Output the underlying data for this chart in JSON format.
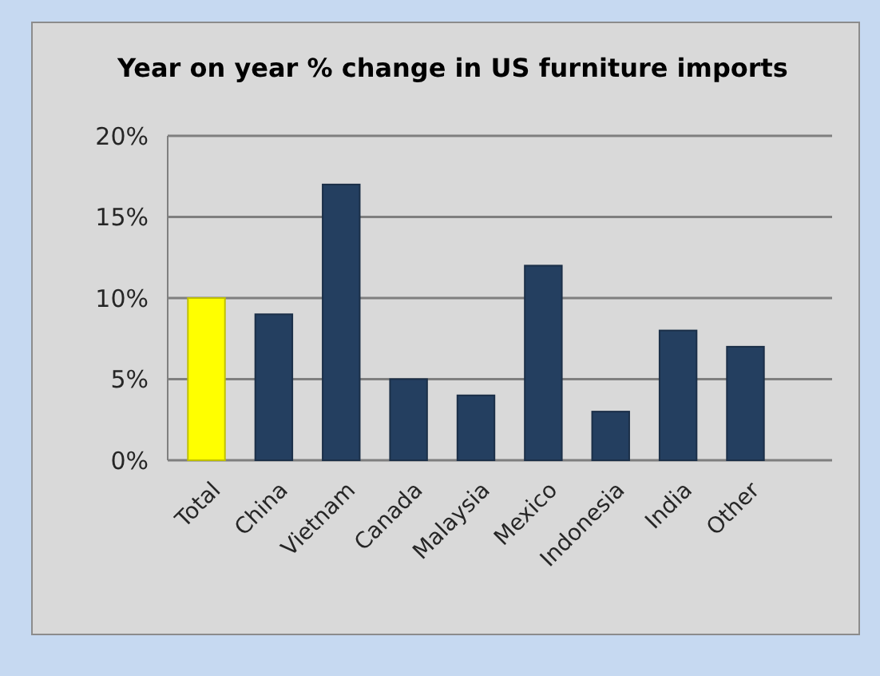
{
  "chart_data": {
    "type": "bar",
    "title": "Year on year % change in US furniture imports",
    "categories": [
      "Total",
      "China",
      "Vietnam",
      "Canada",
      "Malaysia",
      "Mexico",
      "Indonesia",
      "India",
      "Other"
    ],
    "values": [
      10,
      9,
      17,
      5,
      4,
      12,
      3,
      8,
      7
    ],
    "colors": [
      "#ffff00",
      "#243f60",
      "#243f60",
      "#243f60",
      "#243f60",
      "#243f60",
      "#243f60",
      "#243f60",
      "#243f60"
    ],
    "ylim": [
      0,
      20
    ],
    "yticks": [
      {
        "value": 0,
        "label": "0%"
      },
      {
        "value": 5,
        "label": "5%"
      },
      {
        "value": 10,
        "label": "10%"
      },
      {
        "value": 15,
        "label": "15%"
      },
      {
        "value": 20,
        "label": "20%"
      }
    ],
    "grid": "y"
  }
}
